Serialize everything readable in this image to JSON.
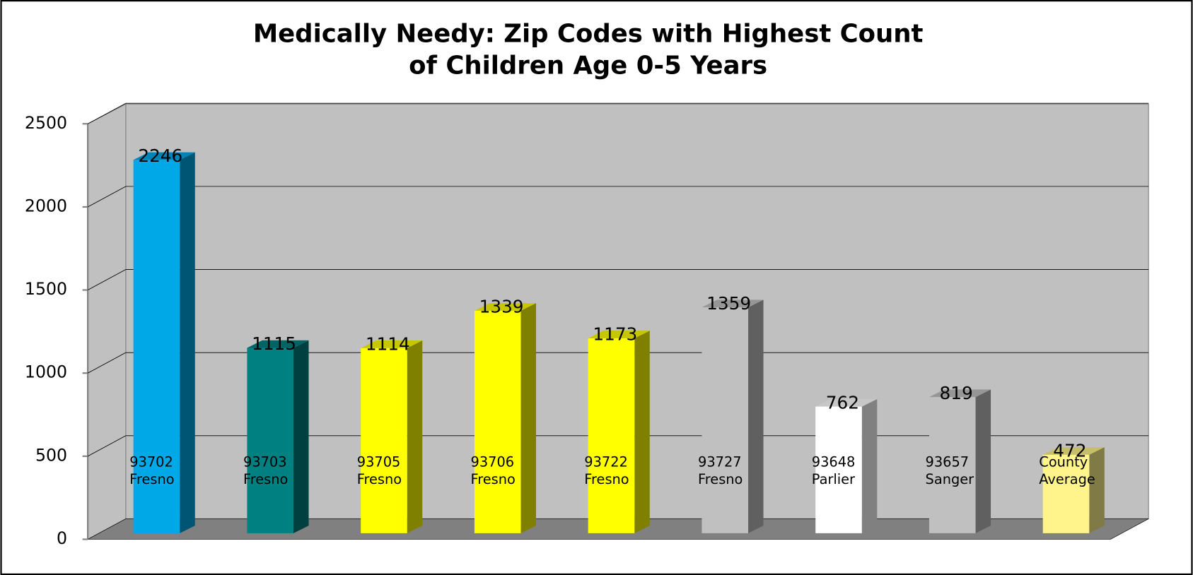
{
  "chart_data": {
    "type": "bar3d",
    "title": [
      "Medically Needy: Zip Codes with Highest Count",
      "of Children Age 0-5 Years"
    ],
    "categories": [
      [
        "93702",
        "Fresno"
      ],
      [
        "93703",
        "Fresno"
      ],
      [
        "93705",
        "Fresno"
      ],
      [
        "93706",
        "Fresno"
      ],
      [
        "93722",
        "Fresno"
      ],
      [
        "93727",
        "Fresno"
      ],
      [
        "93648",
        "Parlier"
      ],
      [
        "93657",
        "Sanger"
      ],
      [
        "County",
        "Average"
      ]
    ],
    "values": [
      2246,
      1115,
      1114,
      1339,
      1173,
      1359,
      762,
      819,
      472
    ],
    "colors": [
      "#00a8e8",
      "#008080",
      "#ffff00",
      "#ffff00",
      "#ffff00",
      "#c0c0c0",
      "#ffffff",
      "#c0c0c0",
      "#fff48c"
    ],
    "ylim": [
      0,
      2500
    ],
    "yticks": [
      0,
      500,
      1000,
      1500,
      2000,
      2500
    ],
    "grid": true
  }
}
